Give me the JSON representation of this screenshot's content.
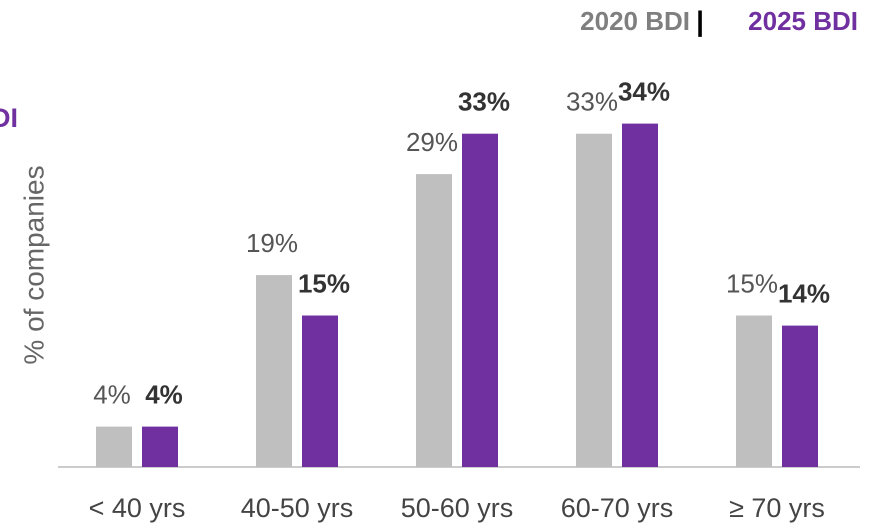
{
  "chart_data": {
    "type": "bar",
    "y_axis_label": "% of companies",
    "annotation": "DI",
    "legend_separator": "|",
    "categories": [
      "< 40 yrs",
      "40-50 yrs",
      "50-60 yrs",
      "60-70 yrs",
      "≥ 70 yrs"
    ],
    "series": [
      {
        "name": "2020 BDI",
        "color": "#bfbfbf",
        "values": [
          4,
          19,
          29,
          33,
          15
        ],
        "value_labels": [
          "4%",
          "19%",
          "29%",
          "33%",
          "15%"
        ]
      },
      {
        "name": "2025 BDI",
        "color": "#7030a0",
        "values": [
          4,
          15,
          33,
          34,
          14
        ],
        "value_labels": [
          "4%",
          "15%",
          "33%",
          "34%",
          "14%"
        ]
      }
    ],
    "ylim": [
      0,
      40
    ],
    "legend": "top-right"
  }
}
